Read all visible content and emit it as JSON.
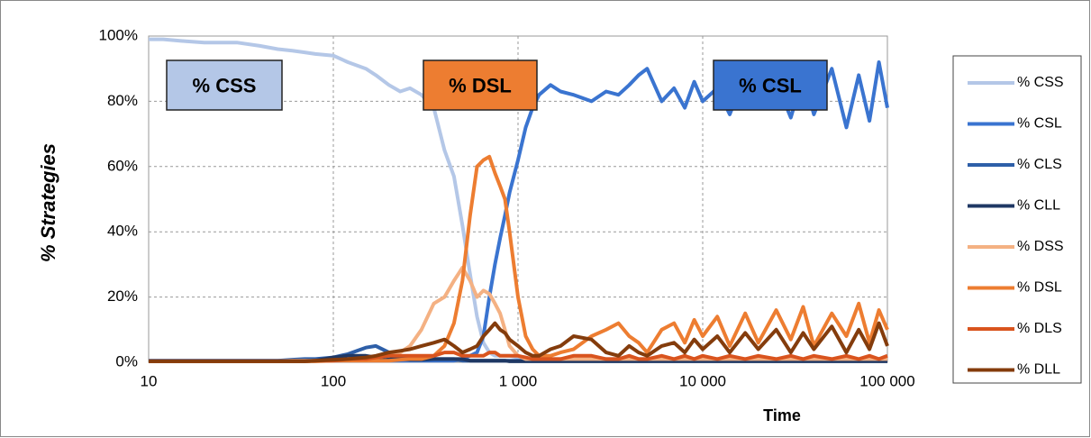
{
  "chart_data": {
    "type": "line",
    "y_label": "% Strategies",
    "x_label": "Time",
    "xscale": "log",
    "grid": true,
    "legend": "right",
    "xlim": [
      10,
      100000
    ],
    "xticks": [
      10,
      100,
      {
        "value": 1000,
        "label": "1 000"
      },
      {
        "value": 10000,
        "label": "10 000"
      },
      {
        "value": 100000,
        "label": "100 000"
      }
    ],
    "ylim": [
      0,
      100
    ],
    "yticks": [
      {
        "value": 0,
        "label": "0%"
      },
      {
        "value": 20,
        "label": "20%"
      },
      {
        "value": 40,
        "label": "40%"
      },
      {
        "value": 60,
        "label": "60%"
      },
      {
        "value": 80,
        "label": "80%"
      },
      {
        "value": 100,
        "label": "100%"
      }
    ],
    "annotations": [
      {
        "text": "% CSS",
        "color": "#b4c7e7"
      },
      {
        "text": "% DSL",
        "color": "#ed7d31"
      },
      {
        "text": "% CSL",
        "color": "#3a74d0"
      }
    ],
    "x": [
      10,
      12,
      15,
      20,
      25,
      30,
      40,
      50,
      60,
      70,
      80,
      100,
      120,
      150,
      170,
      200,
      230,
      260,
      300,
      350,
      400,
      450,
      500,
      550,
      600,
      650,
      700,
      750,
      800,
      850,
      900,
      1000,
      1100,
      1200,
      1300,
      1500,
      1700,
      2000,
      2500,
      3000,
      3500,
      4000,
      4500,
      5000,
      6000,
      7000,
      8000,
      9000,
      10000,
      12000,
      14000,
      17000,
      20000,
      25000,
      30000,
      35000,
      40000,
      50000,
      60000,
      70000,
      80000,
      90000,
      100000
    ],
    "series": [
      {
        "name": "% CSS",
        "color": "#b4c7e7",
        "values": [
          99,
          99,
          98.5,
          98,
          98,
          98,
          97,
          96,
          95.5,
          95,
          94.5,
          94,
          92,
          90,
          88,
          85,
          83,
          84,
          82,
          78,
          65,
          57,
          42,
          27,
          14,
          6,
          3,
          2,
          2,
          2,
          2,
          1.5,
          1,
          1,
          1,
          1,
          1,
          1,
          1,
          1,
          1,
          1,
          1,
          1,
          1,
          1,
          1,
          1,
          0.5,
          0.5,
          0.5,
          0.5,
          0.5,
          0.5,
          0.5,
          0.5,
          0.5,
          0.5,
          0.5,
          0.5,
          0.5,
          0.5,
          0.5
        ]
      },
      {
        "name": "% CSL",
        "color": "#3a74d0",
        "values": [
          0.5,
          0.5,
          0.5,
          0.5,
          0.5,
          0.5,
          0.5,
          0.5,
          0.5,
          0.5,
          0.5,
          0.5,
          0.5,
          0.5,
          0.5,
          0.5,
          0.5,
          0.5,
          0.5,
          0.5,
          0.5,
          0.5,
          1,
          2,
          3,
          8,
          20,
          30,
          38,
          45,
          52,
          62,
          72,
          78,
          82,
          85,
          83,
          82,
          80,
          83,
          82,
          85,
          88,
          90,
          80,
          84,
          78,
          86,
          80,
          84,
          76,
          88,
          78,
          86,
          75,
          88,
          76,
          90,
          72,
          88,
          74,
          92,
          78
        ]
      },
      {
        "name": "% CLS",
        "color": "#2e5fa8",
        "values": [
          0.5,
          0.5,
          0.5,
          0.5,
          0.5,
          0.5,
          0.5,
          0.5,
          0.8,
          1,
          1,
          1.5,
          2.5,
          4.5,
          5,
          3,
          2,
          1.5,
          1,
          1,
          1,
          1,
          0.5,
          0.5,
          0.5,
          0.5,
          0.5,
          0.5,
          0.5,
          0.5,
          0.5,
          0.5,
          0.5,
          0.5,
          0.5,
          0.5,
          0.5,
          0.5,
          0.5,
          0.5,
          0.5,
          0.5,
          0.5,
          0.5,
          0.5,
          0.5,
          0.5,
          0.5,
          0.5,
          0.5,
          0.5,
          0.5,
          0.5,
          0.5,
          0.5,
          0.5,
          0.5,
          0.5,
          0.5,
          0.5,
          0.5,
          0.5,
          0.5
        ]
      },
      {
        "name": "% CLL",
        "color": "#1f3864",
        "values": [
          0.3,
          0.3,
          0.3,
          0.3,
          0.3,
          0.3,
          0.3,
          0.3,
          0.3,
          0.3,
          0.5,
          1.5,
          2,
          2,
          1.5,
          1,
          1,
          0.8,
          0.8,
          1,
          1,
          1,
          1,
          0.5,
          0.5,
          0.5,
          0.5,
          0.5,
          0.5,
          0.5,
          0.3,
          0.3,
          0.3,
          0.3,
          0.3,
          0.3,
          0.3,
          0.3,
          0.3,
          0.3,
          0.3,
          0.3,
          0.3,
          0.3,
          0.3,
          0.3,
          0.3,
          0.3,
          0.3,
          0.3,
          0.3,
          0.3,
          0.3,
          0.3,
          0.3,
          0.3,
          0.3,
          0.3,
          0.3,
          0.3,
          0.3,
          0.3,
          0.3
        ]
      },
      {
        "name": "% DSS",
        "color": "#f4b183",
        "values": [
          0.3,
          0.3,
          0.3,
          0.3,
          0.3,
          0.3,
          0.3,
          0.3,
          0.5,
          0.5,
          0.5,
          0.5,
          1,
          1,
          1.5,
          2,
          3,
          5,
          10,
          18,
          20,
          25,
          29,
          25,
          20,
          22,
          21,
          18,
          15,
          10,
          5,
          2,
          1,
          1,
          1,
          1,
          1,
          1,
          1,
          1,
          1,
          1,
          1,
          1,
          1,
          1,
          1,
          1,
          1,
          1,
          1,
          1,
          1,
          1,
          1,
          1,
          1,
          1,
          1,
          1,
          1,
          1,
          1
        ]
      },
      {
        "name": "% DSL",
        "color": "#ed7d31",
        "values": [
          0.3,
          0.3,
          0.3,
          0.3,
          0.3,
          0.3,
          0.3,
          0.3,
          0.3,
          0.3,
          0.3,
          0.5,
          0.5,
          0.5,
          0.5,
          0.5,
          0.8,
          1,
          1,
          2,
          5,
          12,
          25,
          45,
          60,
          62,
          63,
          58,
          54,
          50,
          40,
          20,
          8,
          4,
          2,
          2,
          3,
          4,
          8,
          10,
          12,
          8,
          6,
          3,
          10,
          12,
          6,
          13,
          8,
          14,
          5,
          15,
          6,
          16,
          7,
          17,
          5,
          15,
          8,
          18,
          6,
          16,
          10
        ]
      },
      {
        "name": "% DLS",
        "color": "#d9541e",
        "values": [
          0.3,
          0.3,
          0.3,
          0.3,
          0.3,
          0.3,
          0.3,
          0.3,
          0.3,
          0.3,
          0.5,
          0.5,
          1,
          1,
          1.5,
          2,
          2,
          2,
          2,
          2,
          3,
          3,
          2,
          2,
          2,
          2,
          3,
          3,
          2,
          2,
          2,
          2,
          1.5,
          1,
          1,
          1,
          1,
          2,
          2,
          1,
          1,
          2,
          1,
          1,
          2,
          1,
          2,
          1,
          2,
          1,
          2,
          1,
          2,
          1,
          2,
          1,
          2,
          1,
          2,
          1,
          2,
          1,
          2
        ]
      },
      {
        "name": "% DLL",
        "color": "#843c0c",
        "values": [
          0.3,
          0.3,
          0.3,
          0.3,
          0.3,
          0.3,
          0.3,
          0.3,
          0.3,
          0.3,
          0.5,
          0.8,
          1,
          1.5,
          2,
          3,
          3.5,
          4,
          5,
          6,
          7,
          5,
          3,
          4,
          5,
          8,
          10,
          12,
          10,
          9,
          7,
          5,
          3,
          2,
          2,
          4,
          5,
          8,
          7,
          3,
          2,
          5,
          3,
          2,
          5,
          6,
          3,
          7,
          4,
          8,
          3,
          9,
          4,
          10,
          3,
          9,
          4,
          11,
          3,
          10,
          4,
          12,
          5
        ]
      }
    ]
  }
}
